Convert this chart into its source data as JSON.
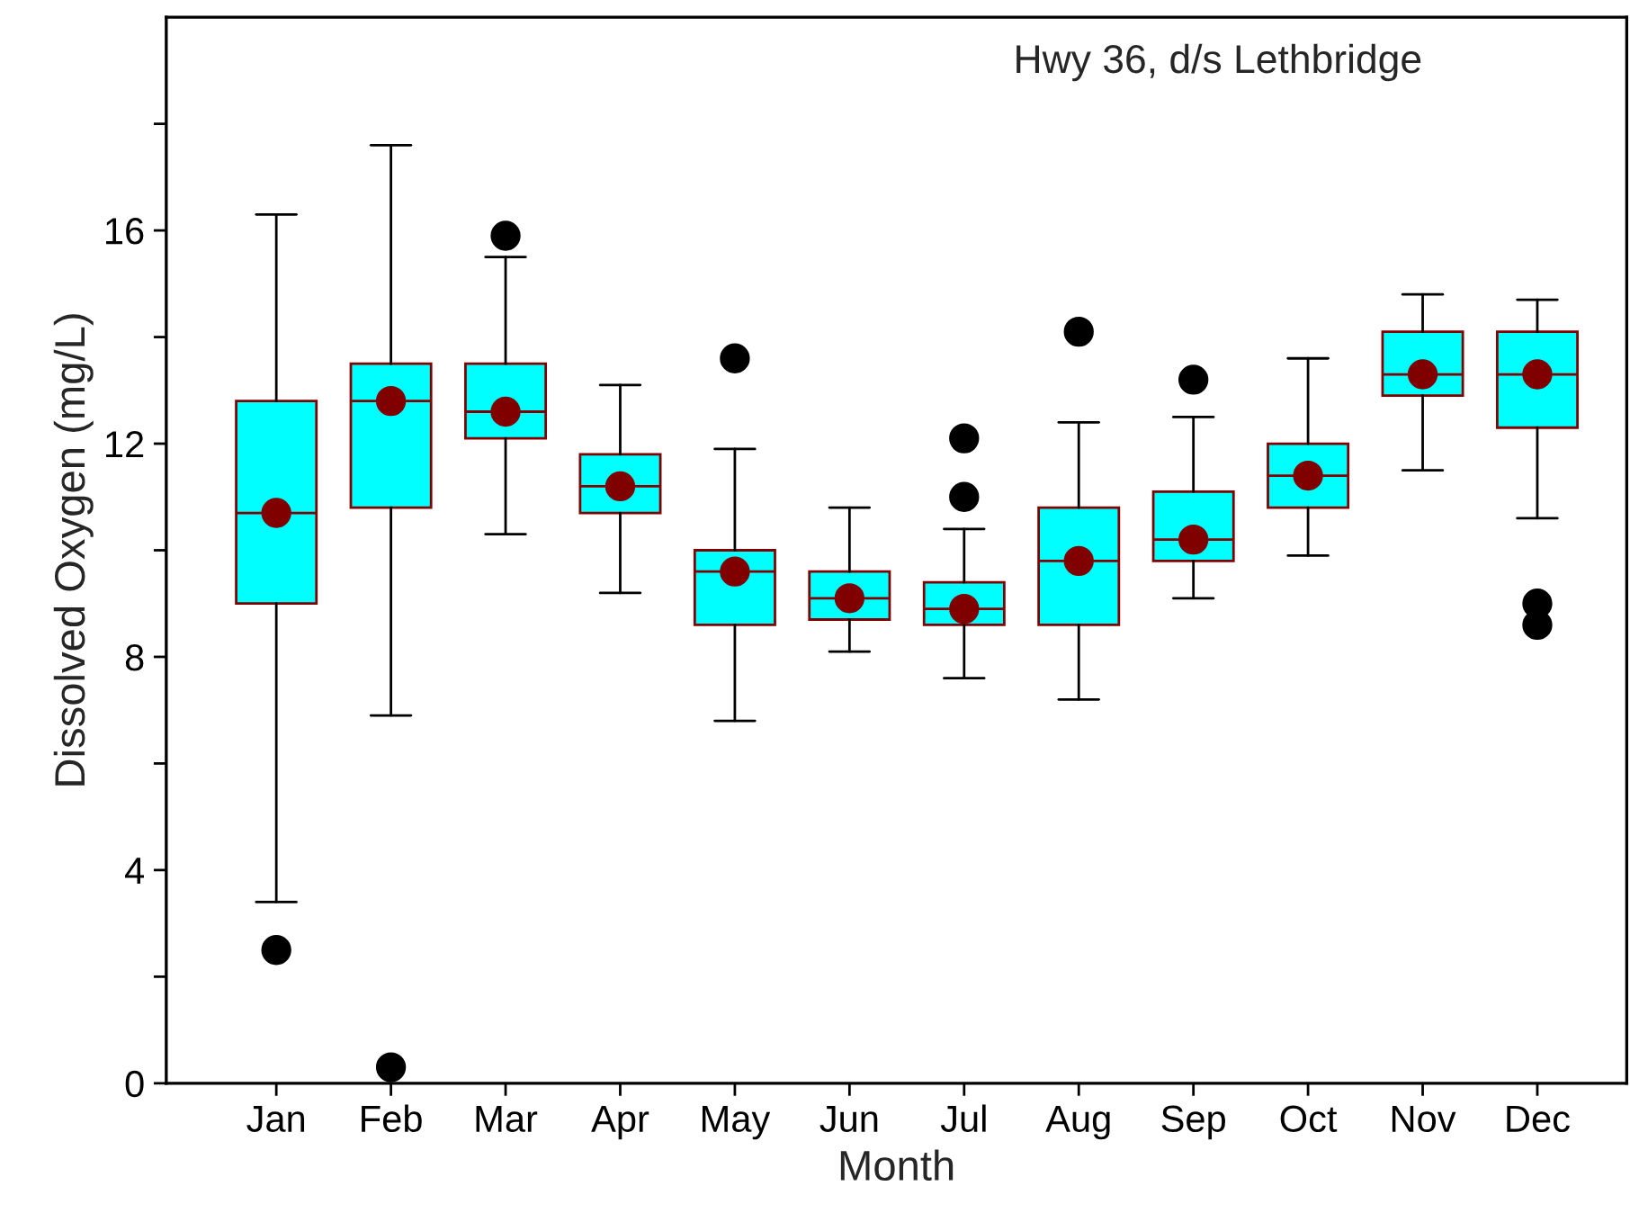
{
  "chart_data": {
    "type": "box",
    "title": "Hwy 36, d/s Lethbridge",
    "xlabel": "Month",
    "ylabel": "Dissolved Oxygen (mg/L)",
    "categories": [
      "Jan",
      "Feb",
      "Mar",
      "Apr",
      "May",
      "Jun",
      "Jul",
      "Aug",
      "Sep",
      "Oct",
      "Nov",
      "Dec"
    ],
    "color": "#00ffff",
    "ylim": [
      0,
      20
    ],
    "yticks": [
      0,
      {
        "value": 2,
        "label": null
      },
      4,
      {
        "value": 6,
        "label": null
      },
      8,
      {
        "value": 10,
        "label": null
      },
      12,
      {
        "value": 14,
        "label": null
      },
      16,
      {
        "value": 18,
        "label": null
      }
    ],
    "grid": false,
    "legend": false,
    "boxes": [
      {
        "low": 3.4,
        "q1": 9.0,
        "median": 10.7,
        "q3": 12.8,
        "high": 16.3,
        "mean": 10.7,
        "outliers": [
          2.5
        ]
      },
      {
        "low": 6.9,
        "q1": 10.8,
        "median": 12.8,
        "q3": 13.5,
        "high": 17.6,
        "mean": 12.8,
        "outliers": [
          0.3
        ]
      },
      {
        "low": 10.3,
        "q1": 12.1,
        "median": 12.6,
        "q3": 13.5,
        "high": 15.5,
        "mean": 12.6,
        "outliers": [
          15.9
        ]
      },
      {
        "low": 9.2,
        "q1": 10.7,
        "median": 11.2,
        "q3": 11.8,
        "high": 13.1,
        "mean": 11.2
      },
      {
        "low": 6.8,
        "q1": 8.6,
        "median": 9.6,
        "q3": 10.0,
        "high": 11.9,
        "mean": 9.6,
        "outliers": [
          13.6
        ]
      },
      {
        "low": 8.1,
        "q1": 8.7,
        "median": 9.1,
        "q3": 9.6,
        "high": 10.8,
        "mean": 9.1
      },
      {
        "low": 7.6,
        "q1": 8.6,
        "median": 8.9,
        "q3": 9.4,
        "high": 10.4,
        "mean": 8.9,
        "outliers": [
          11.0,
          12.1
        ]
      },
      {
        "low": 7.2,
        "q1": 8.6,
        "median": 9.8,
        "q3": 10.8,
        "high": 12.4,
        "mean": 9.8,
        "outliers": [
          14.1
        ]
      },
      {
        "low": 9.1,
        "q1": 9.8,
        "median": 10.2,
        "q3": 11.1,
        "high": 12.5,
        "mean": 10.2,
        "outliers": [
          13.2
        ]
      },
      {
        "low": 9.9,
        "q1": 10.8,
        "median": 11.4,
        "q3": 12.0,
        "high": 13.6,
        "mean": 11.4
      },
      {
        "low": 11.5,
        "q1": 12.9,
        "median": 13.3,
        "q3": 14.1,
        "high": 14.8,
        "mean": 13.3
      },
      {
        "low": 10.6,
        "q1": 12.3,
        "median": 13.3,
        "q3": 14.1,
        "high": 14.7,
        "mean": 13.3,
        "outliers": [
          8.6,
          9.0
        ]
      }
    ]
  }
}
